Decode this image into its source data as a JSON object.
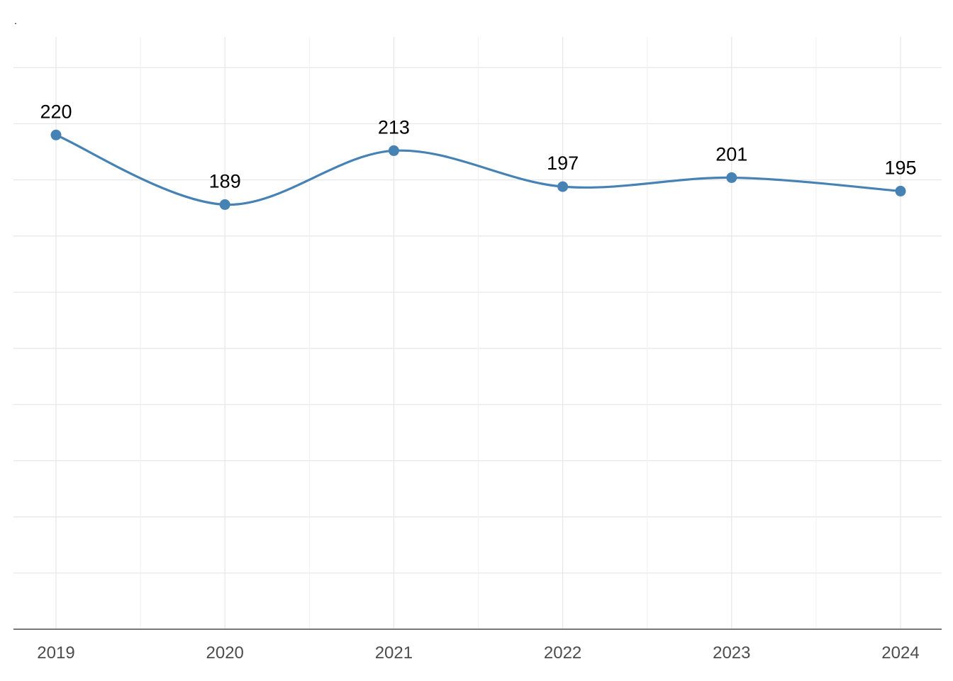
{
  "chart_data": {
    "type": "line",
    "title": ".",
    "xlabel": "",
    "ylabel": "",
    "categories": [
      "2019",
      "2020",
      "2021",
      "2022",
      "2023",
      "2024"
    ],
    "series": [
      {
        "values": [
          220,
          189,
          213,
          197,
          201,
          195
        ]
      }
    ],
    "data_labels": [
      "220",
      "189",
      "213",
      "197",
      "201",
      "195"
    ],
    "ylim": [
      0,
      250
    ],
    "y_grid_step": 25,
    "x_grid": "on",
    "y_grid": "on",
    "y_tick_labels": "hidden",
    "smooth": true,
    "line_color": "#4682B4",
    "point_color": "#4682B4",
    "label_color": "#000000",
    "tick_label_color": "#4d4d4d",
    "grid_color": "#e6e6e6",
    "axis_color": "#4d4d4d",
    "legend": "none"
  }
}
